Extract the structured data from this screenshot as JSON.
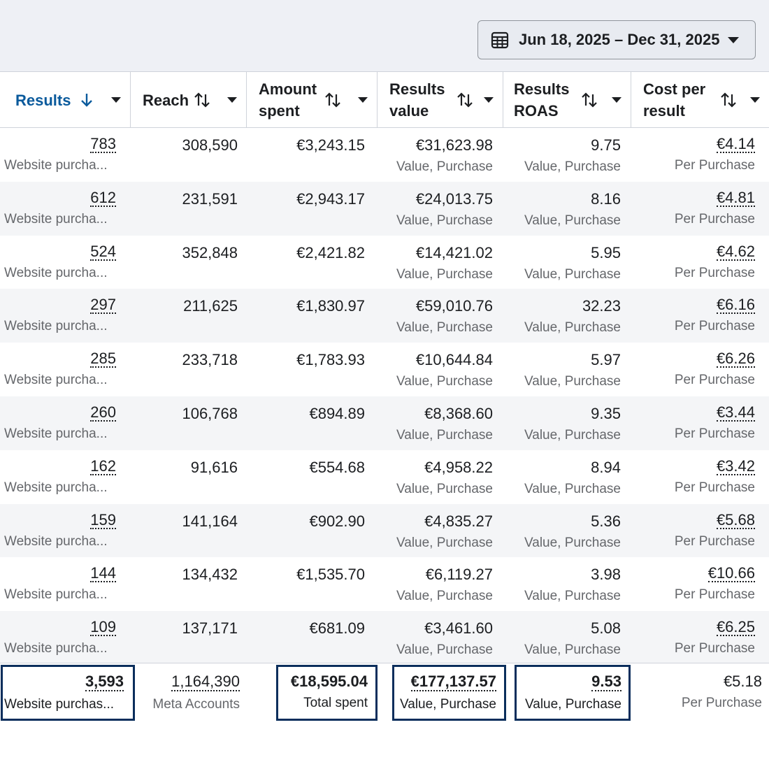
{
  "date_range": {
    "label": "Jun 18, 2025 – Dec 31, 2025"
  },
  "columns": {
    "results": "Results",
    "reach": "Reach",
    "amount_spent_1": "Amount",
    "amount_spent_2": "spent",
    "results_value_1": "Results",
    "results_value_2": "value",
    "results_roas_1": "Results",
    "results_roas_2": "ROAS",
    "cost_per_result_1": "Cost per",
    "cost_per_result_2": "result"
  },
  "sub_labels": {
    "results": "Website purcha...",
    "value": "Value, Purchase",
    "roas": "Value, Purchase",
    "cpr": "Per Purchase"
  },
  "rows": [
    {
      "results": "783",
      "reach": "308,590",
      "amount_spent": "€3,243.15",
      "results_value": "€31,623.98",
      "roas": "9.75",
      "cost_per_result": "€4.14"
    },
    {
      "results": "612",
      "reach": "231,591",
      "amount_spent": "€2,943.17",
      "results_value": "€24,013.75",
      "roas": "8.16",
      "cost_per_result": "€4.81"
    },
    {
      "results": "524",
      "reach": "352,848",
      "amount_spent": "€2,421.82",
      "results_value": "€14,421.02",
      "roas": "5.95",
      "cost_per_result": "€4.62"
    },
    {
      "results": "297",
      "reach": "211,625",
      "amount_spent": "€1,830.97",
      "results_value": "€59,010.76",
      "roas": "32.23",
      "cost_per_result": "€6.16"
    },
    {
      "results": "285",
      "reach": "233,718",
      "amount_spent": "€1,783.93",
      "results_value": "€10,644.84",
      "roas": "5.97",
      "cost_per_result": "€6.26"
    },
    {
      "results": "260",
      "reach": "106,768",
      "amount_spent": "€894.89",
      "results_value": "€8,368.60",
      "roas": "9.35",
      "cost_per_result": "€3.44"
    },
    {
      "results": "162",
      "reach": "91,616",
      "amount_spent": "€554.68",
      "results_value": "€4,958.22",
      "roas": "8.94",
      "cost_per_result": "€3.42"
    },
    {
      "results": "159",
      "reach": "141,164",
      "amount_spent": "€902.90",
      "results_value": "€4,835.27",
      "roas": "5.36",
      "cost_per_result": "€5.68"
    },
    {
      "results": "144",
      "reach": "134,432",
      "amount_spent": "€1,535.70",
      "results_value": "€6,119.27",
      "roas": "3.98",
      "cost_per_result": "€10.66"
    },
    {
      "results": "109",
      "reach": "137,171",
      "amount_spent": "€681.09",
      "results_value": "€3,461.60",
      "roas": "5.08",
      "cost_per_result": "€6.25"
    }
  ],
  "totals": {
    "results": "3,593",
    "results_label": "Website purchas...",
    "reach": "1,164,390",
    "reach_label": "Meta Accounts",
    "amount_spent": "€18,595.04",
    "amount_spent_label": "Total spent",
    "results_value": "€177,137.57",
    "results_value_label": "Value, Purchase",
    "roas": "9.53",
    "roas_label": "Value, Purchase",
    "cost_per_result": "€5.18",
    "cost_per_result_label": "Per Purchase"
  },
  "colors": {
    "accent": "#0a5a9c",
    "highlight_border": "#0b2e5c",
    "row_alt": "#f4f5f7"
  }
}
